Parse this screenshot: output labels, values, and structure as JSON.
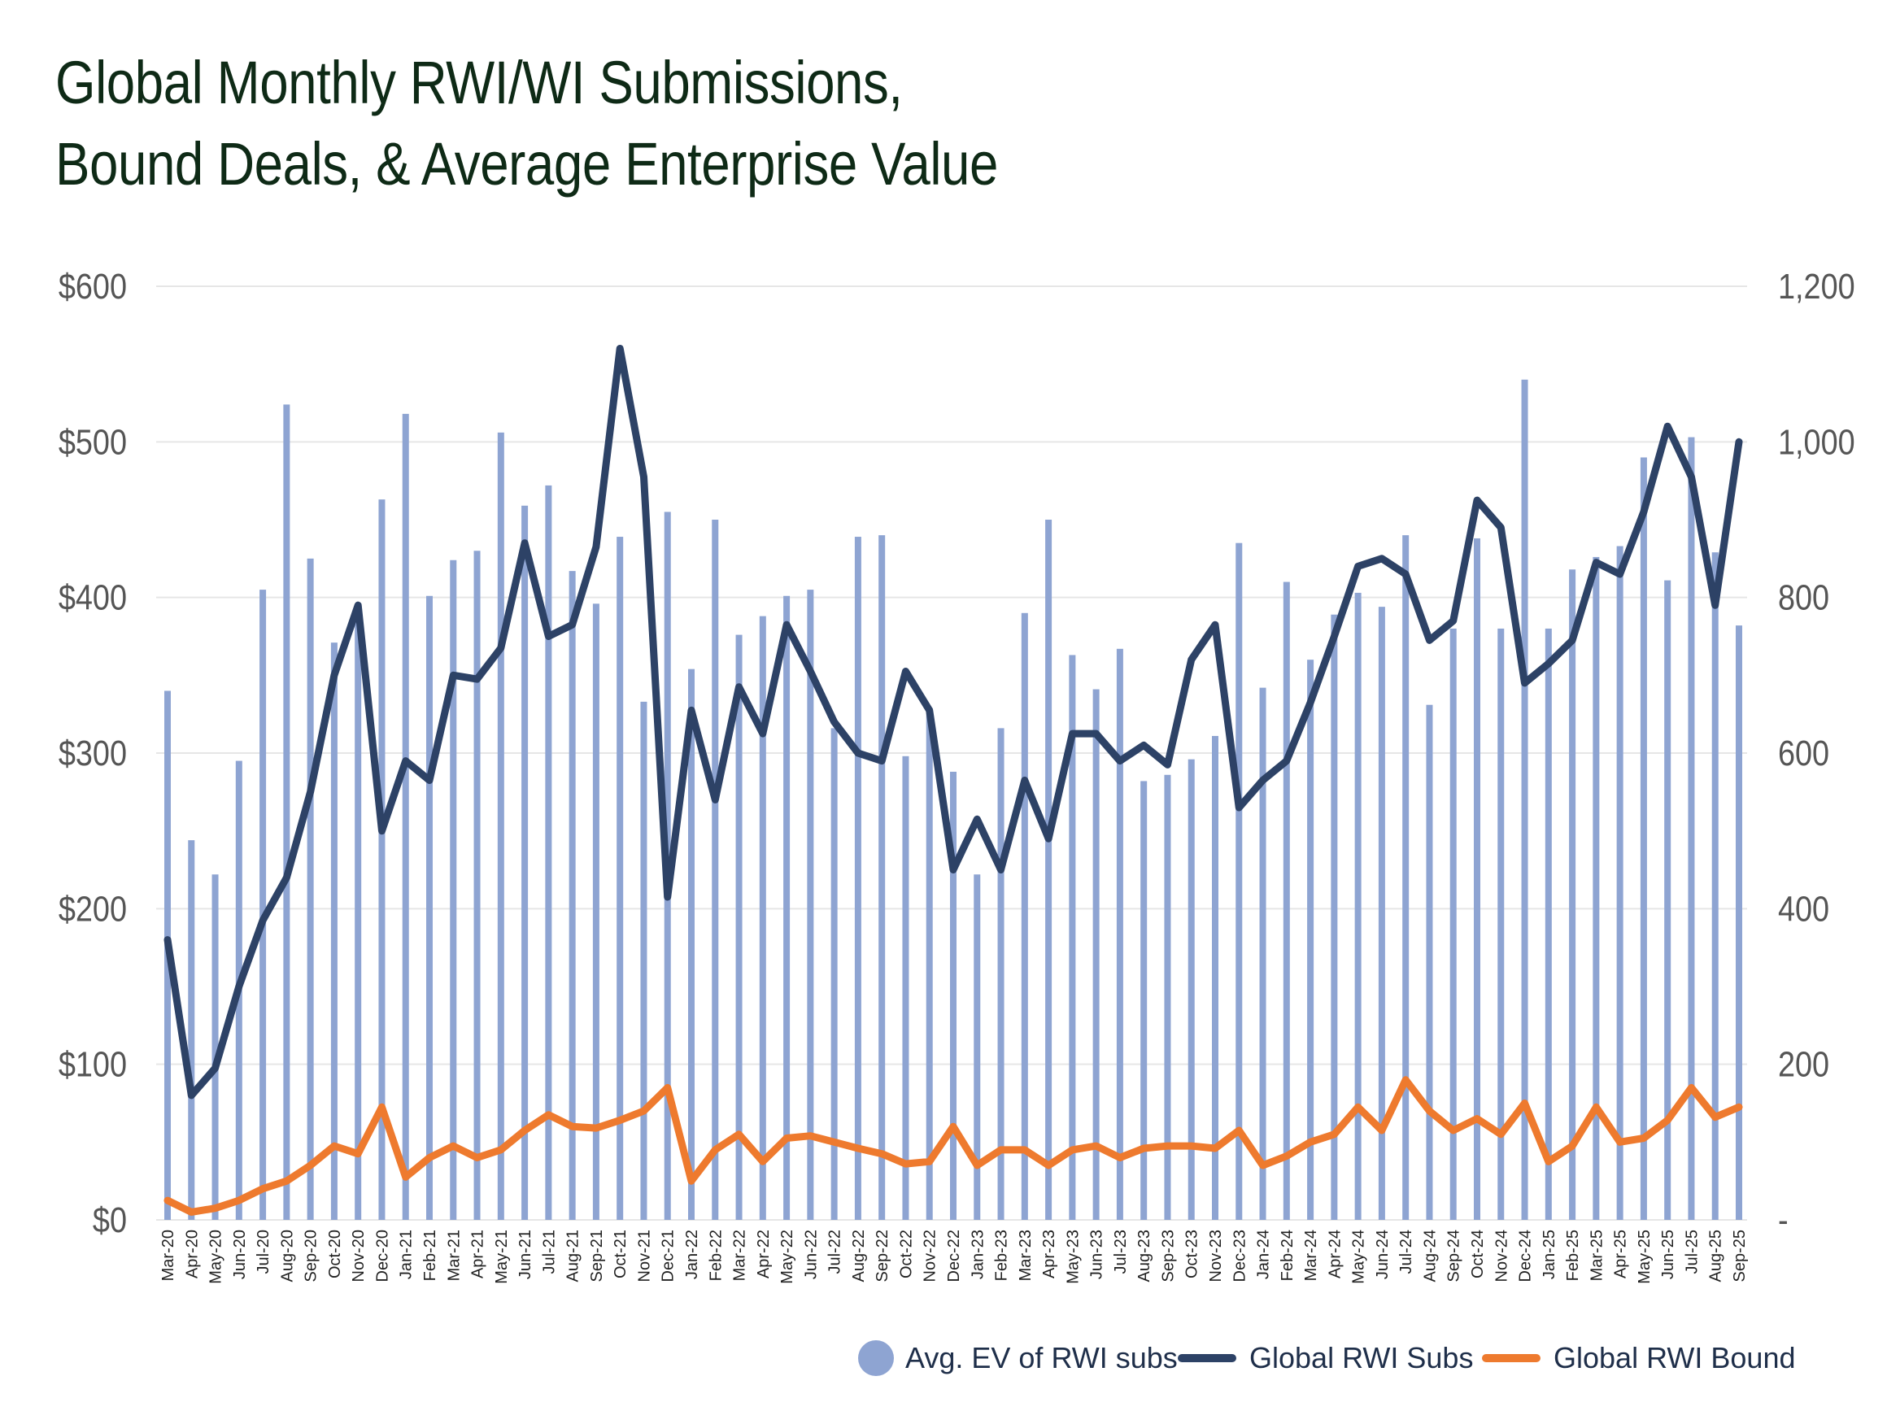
{
  "title": {
    "line1": "Global Monthly RWI/WI Submissions,",
    "line2": "Bound Deals, & Average Enterprise Value"
  },
  "colors": {
    "bars": "#8ea4d2",
    "subs_line": "#2d4266",
    "bound_line": "#ee7a2e",
    "grid": "#e6e6e6",
    "axis_text": "#555555",
    "title": "#0e2a16"
  },
  "legend": {
    "bars_label": "Avg. EV of RWI subs",
    "subs_label": "Global RWI Subs",
    "bound_label": "Global RWI Bound"
  },
  "chart_data": {
    "type": "bar+line",
    "title": "Global Monthly RWI/WI Submissions, Bound Deals, & Average Enterprise Value",
    "categories": [
      "Mar-20",
      "Apr-20",
      "May-20",
      "Jun-20",
      "Jul-20",
      "Aug-20",
      "Sep-20",
      "Oct-20",
      "Nov-20",
      "Dec-20",
      "Jan-21",
      "Feb-21",
      "Mar-21",
      "Apr-21",
      "May-21",
      "Jun-21",
      "Jul-21",
      "Aug-21",
      "Sep-21",
      "Oct-21",
      "Nov-21",
      "Dec-21",
      "Jan-22",
      "Feb-22",
      "Mar-22",
      "Apr-22",
      "May-22",
      "Jun-22",
      "Jul-22",
      "Aug-22",
      "Sep-22",
      "Oct-22",
      "Nov-22",
      "Dec-22",
      "Jan-23",
      "Feb-23",
      "Mar-23",
      "Apr-23",
      "May-23",
      "Jun-23",
      "Jul-23",
      "Aug-23",
      "Sep-23",
      "Oct-23",
      "Nov-23",
      "Dec-23",
      "Jan-24",
      "Feb-24",
      "Mar-24",
      "Apr-24",
      "May-24",
      "Jun-24",
      "Jul-24",
      "Aug-24",
      "Sep-24",
      "Oct-24",
      "Nov-24",
      "Dec-24",
      "Jan-25",
      "Feb-25",
      "Mar-25",
      "Apr-25",
      "May-25",
      "Jun-25",
      "Jul-25",
      "Aug-25",
      "Sep-25"
    ],
    "y_left": {
      "min": 0,
      "max": 600,
      "ticks": [
        "$0",
        "$100",
        "$200",
        "$300",
        "$400",
        "$500",
        "$600"
      ]
    },
    "y_right": {
      "min": 0,
      "max": 1200,
      "ticks": [
        "-",
        "200",
        "400",
        "600",
        "800",
        "1,000",
        "1,200"
      ]
    },
    "series": [
      {
        "name": "Avg. EV of RWI subs",
        "type": "bar",
        "axis": "left",
        "values": [
          340,
          244,
          222,
          295,
          405,
          524,
          425,
          371,
          390,
          463,
          518,
          401,
          424,
          430,
          506,
          459,
          472,
          417,
          396,
          439,
          333,
          455,
          354,
          450,
          376,
          388,
          401,
          405,
          316,
          439,
          440,
          298,
          329,
          288,
          222,
          316,
          390,
          450,
          363,
          341,
          367,
          282,
          286,
          296,
          311,
          435,
          342,
          410,
          360,
          389,
          403,
          394,
          440,
          331,
          380,
          438,
          380,
          540,
          380,
          418,
          426,
          433,
          490,
          411,
          503,
          429,
          382
        ]
      },
      {
        "name": "Global RWI Subs",
        "type": "line",
        "axis": "right",
        "values": [
          360,
          160,
          195,
          300,
          385,
          440,
          550,
          700,
          790,
          500,
          590,
          565,
          700,
          695,
          735,
          870,
          750,
          765,
          865,
          1120,
          955,
          415,
          655,
          540,
          685,
          625,
          765,
          705,
          640,
          600,
          590,
          705,
          655,
          450,
          515,
          450,
          565,
          490,
          625,
          625,
          590,
          610,
          585,
          720,
          765,
          530,
          565,
          590,
          665,
          750,
          840,
          850,
          830,
          745,
          770,
          925,
          890,
          690,
          715,
          745,
          845,
          830,
          910,
          1020,
          955,
          790,
          1000
        ]
      },
      {
        "name": "Global RWI Bound",
        "type": "line",
        "axis": "right",
        "values": [
          25,
          10,
          15,
          25,
          40,
          50,
          70,
          95,
          85,
          145,
          55,
          80,
          95,
          80,
          90,
          115,
          135,
          120,
          118,
          128,
          140,
          170,
          50,
          90,
          110,
          75,
          105,
          108,
          100,
          92,
          85,
          72,
          75,
          120,
          70,
          90,
          90,
          70,
          90,
          95,
          80,
          92,
          95,
          95,
          92,
          115,
          70,
          82,
          100,
          110,
          145,
          115,
          180,
          140,
          115,
          130,
          110,
          150,
          75,
          95,
          145,
          100,
          105,
          128,
          170,
          132,
          145
        ]
      }
    ]
  }
}
